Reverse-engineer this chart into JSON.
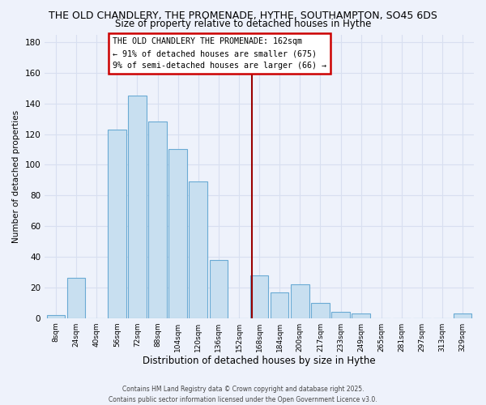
{
  "title": "THE OLD CHANDLERY, THE PROMENADE, HYTHE, SOUTHAMPTON, SO45 6DS",
  "subtitle": "Size of property relative to detached houses in Hythe",
  "xlabel": "Distribution of detached houses by size in Hythe",
  "ylabel": "Number of detached properties",
  "bin_labels": [
    "8sqm",
    "24sqm",
    "40sqm",
    "56sqm",
    "72sqm",
    "88sqm",
    "104sqm",
    "120sqm",
    "136sqm",
    "152sqm",
    "168sqm",
    "184sqm",
    "200sqm",
    "217sqm",
    "233sqm",
    "249sqm",
    "265sqm",
    "281sqm",
    "297sqm",
    "313sqm",
    "329sqm"
  ],
  "bar_values": [
    2,
    26,
    0,
    123,
    145,
    128,
    110,
    89,
    38,
    0,
    28,
    17,
    22,
    10,
    4,
    3,
    0,
    0,
    0,
    0,
    3
  ],
  "bar_color": "#c8dff0",
  "bar_edge_color": "#6aaad4",
  "vline_color": "#990000",
  "annotation_title": "THE OLD CHANDLERY THE PROMENADE: 162sqm",
  "annotation_line1": "← 91% of detached houses are smaller (675)",
  "annotation_line2": "9% of semi-detached houses are larger (66) →",
  "ylim": [
    0,
    185
  ],
  "yticks": [
    0,
    20,
    40,
    60,
    80,
    100,
    120,
    140,
    160,
    180
  ],
  "footer_line1": "Contains HM Land Registry data © Crown copyright and database right 2025.",
  "footer_line2": "Contains public sector information licensed under the Open Government Licence v3.0.",
  "background_color": "#eef2fb",
  "grid_color": "#d8dff0",
  "plot_bg_color": "#eef2fb",
  "title_fontsize": 9.0,
  "subtitle_fontsize": 8.5,
  "ann_border_color": "#cc0000"
}
